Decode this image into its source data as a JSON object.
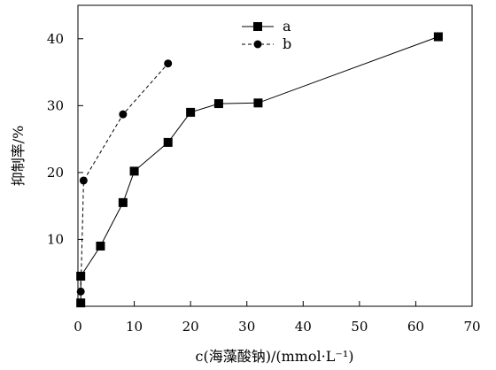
{
  "chart_data": {
    "type": "line",
    "xlabel": "c(海藻酸钠)/(mmol·L⁻¹)",
    "ylabel": "抑制率/%",
    "xlim": [
      0,
      70
    ],
    "ylim": [
      0,
      45
    ],
    "xticks": [
      0,
      10,
      20,
      30,
      40,
      50,
      60,
      70
    ],
    "yticks": [
      10,
      20,
      30,
      40
    ],
    "grid": false,
    "legend": "top-center",
    "series": [
      {
        "name": "a",
        "line_style": "solid",
        "marker": "square",
        "x": [
          0.5,
          0.5,
          4,
          8,
          10,
          16,
          20,
          25,
          32,
          64
        ],
        "y": [
          0.5,
          4.5,
          9,
          15.5,
          20.2,
          24.5,
          29,
          30.3,
          30.4,
          40.3
        ]
      },
      {
        "name": "b",
        "line_style": "dashed",
        "marker": "circle",
        "x": [
          0.5,
          1,
          8,
          16
        ],
        "y": [
          2.2,
          18.8,
          28.7,
          36.3
        ]
      }
    ]
  }
}
